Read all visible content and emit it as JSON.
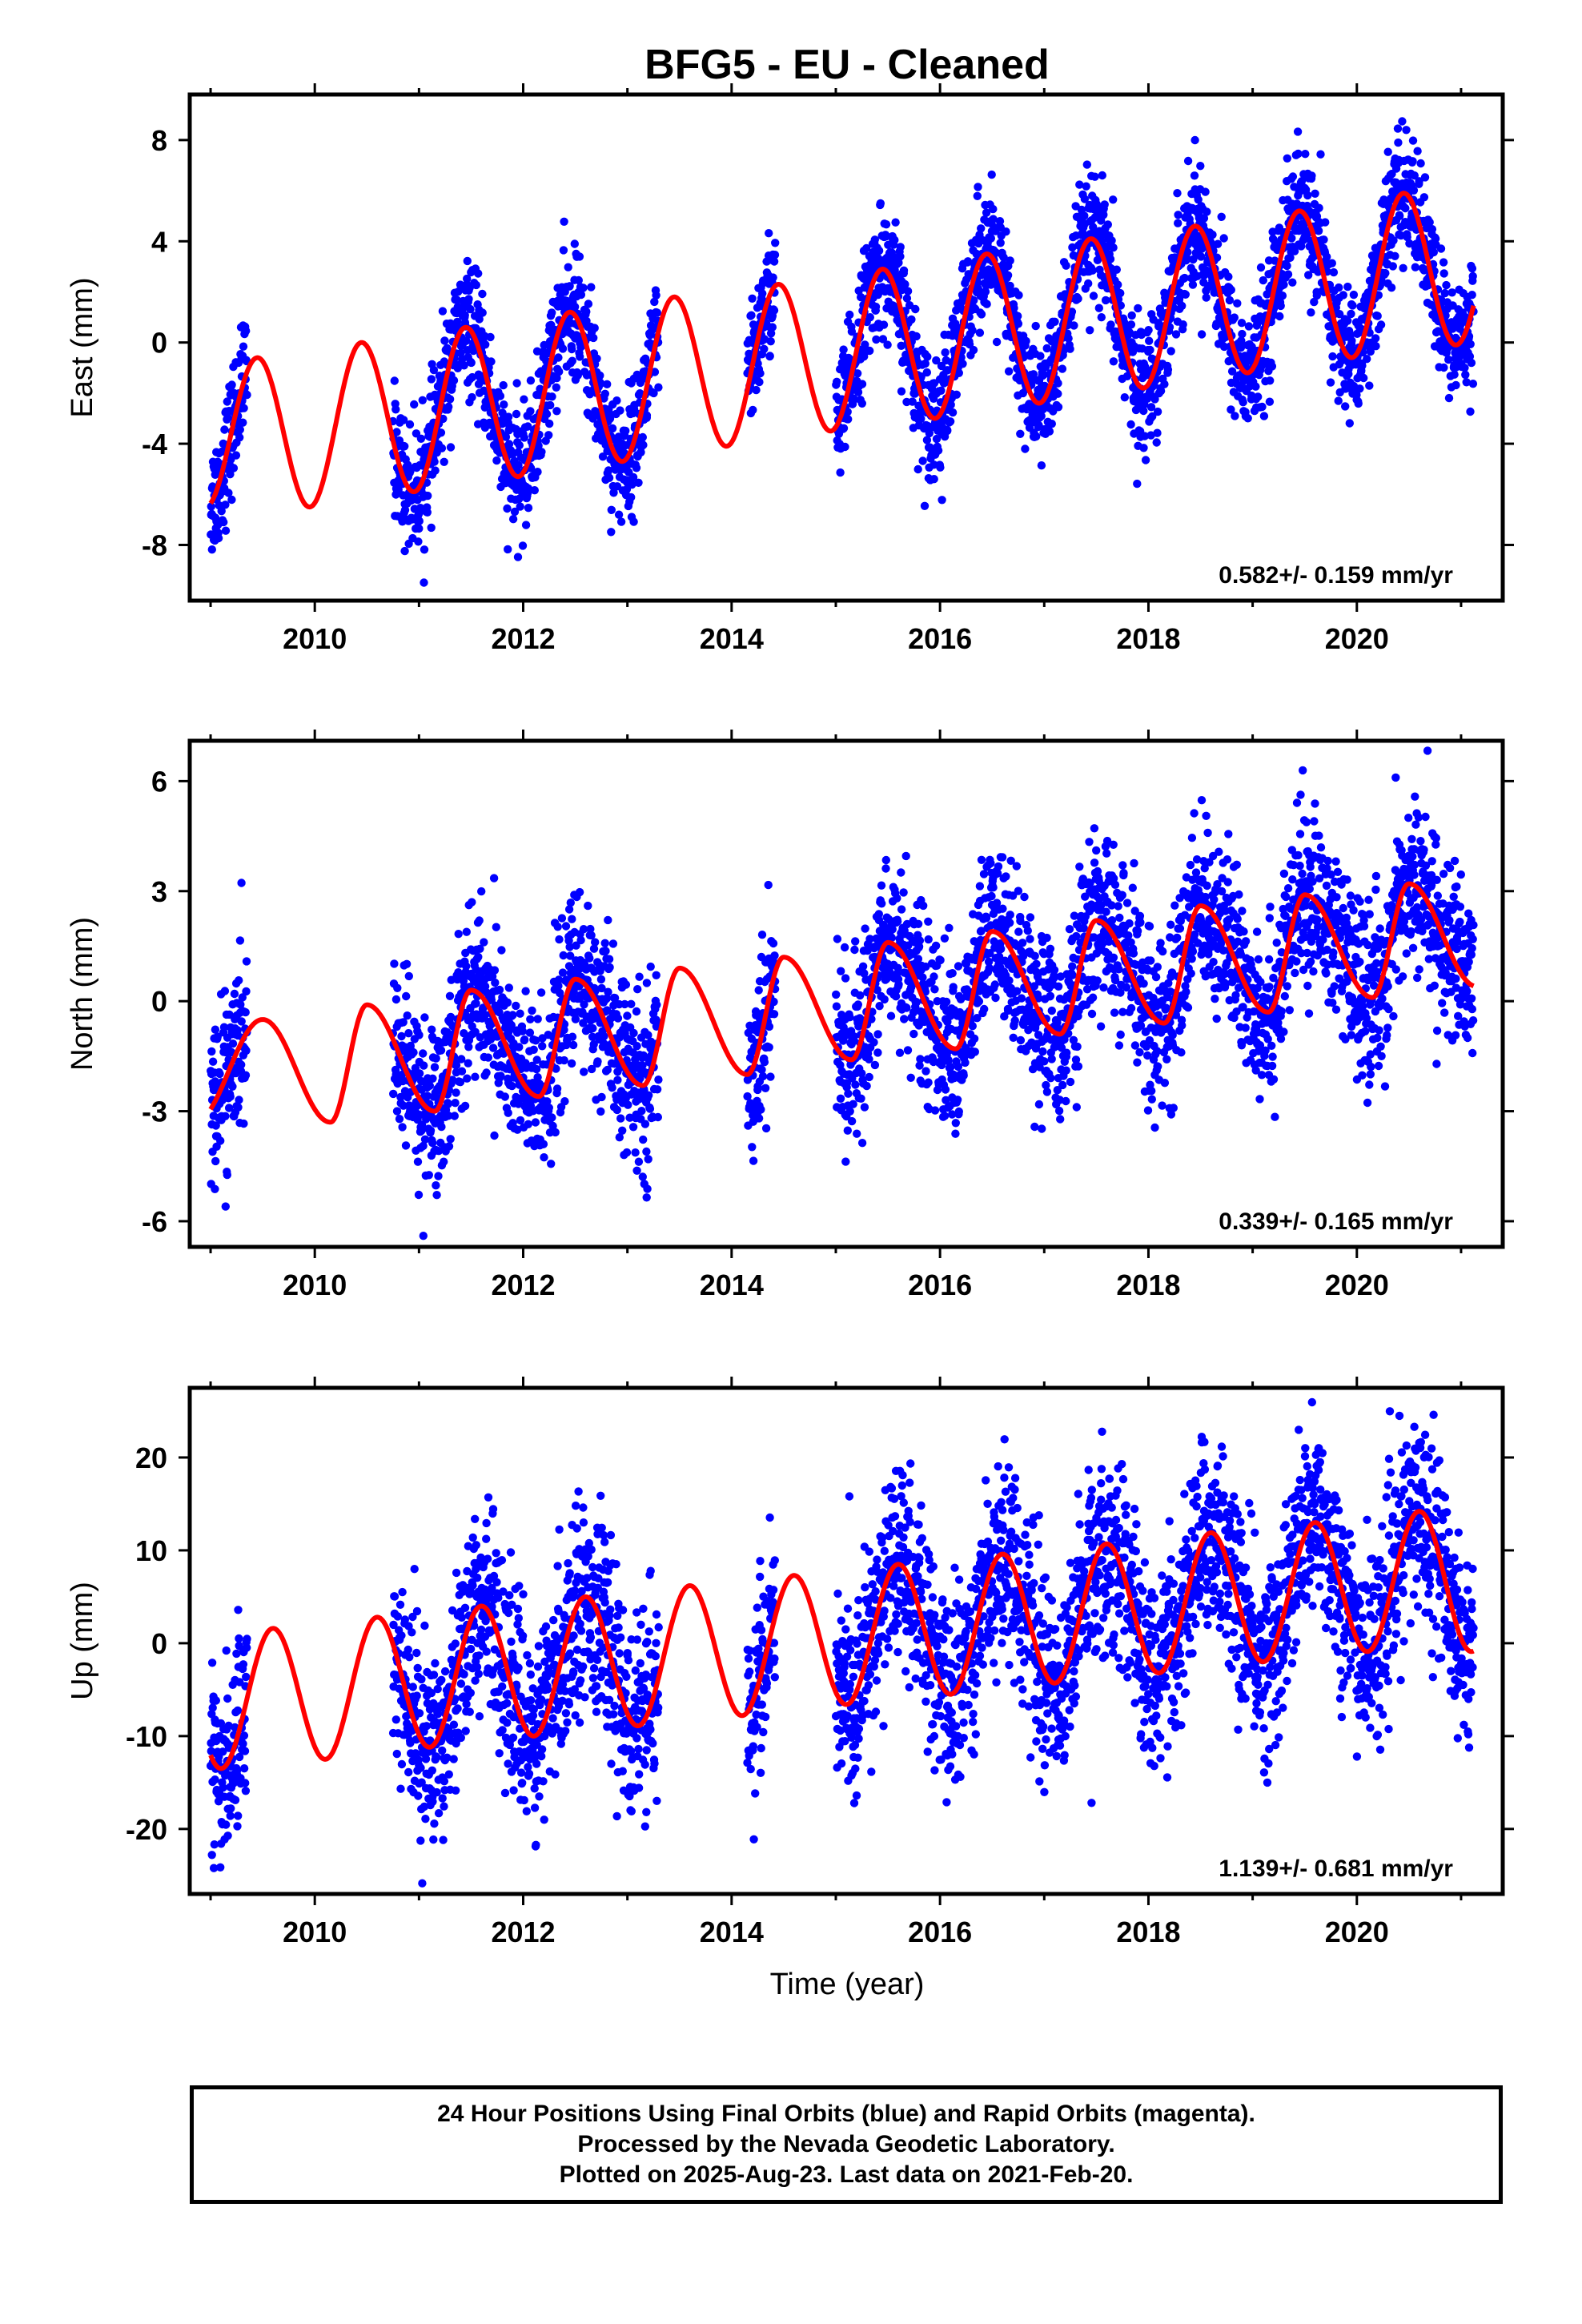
{
  "title": "BFG5  - EU - Cleaned",
  "colors": {
    "points": "#0000ff",
    "model": "#ff0000",
    "axes": "#000000"
  },
  "xlabel": "Time (year)",
  "footer": {
    "line1": "24 Hour Positions Using Final Orbits (blue) and Rapid Orbits (magenta).",
    "line2": "Processed by the Nevada Geodetic Laboratory.",
    "line3": "Plotted on 2025-Aug-23. Last data on 2021-Feb-20."
  },
  "chart_data": [
    {
      "type": "scatter",
      "name": "east",
      "ylabel": "East (mm)",
      "rate_text": "0.582+/- 0.159 mm/yr",
      "xlim": [
        2008.8,
        2021.4
      ],
      "ylim": [
        -10.2,
        9.8
      ],
      "xticks": [
        2010,
        2012,
        2014,
        2016,
        2018,
        2020
      ],
      "xtick_labels": [
        "2010",
        "2012",
        "2014",
        "2016",
        "2018",
        "2020"
      ],
      "yticks": [
        -8,
        -4,
        0,
        4,
        8
      ],
      "ytick_labels": [
        "-8",
        "-4",
        "0",
        "4",
        "8"
      ],
      "model": {
        "start": 2009.0,
        "end": 2021.12,
        "rate": 0.582,
        "offset": -3.0,
        "amplitude": 3.0,
        "peak_x": [
          2009.45,
          2010.45,
          2011.45,
          2012.45,
          2013.45,
          2014.45,
          2015.45,
          2016.45,
          2017.45,
          2018.45,
          2019.45,
          2020.45
        ],
        "peak_y": [
          -0.6,
          0.0,
          0.6,
          1.2,
          1.8,
          2.3,
          2.9,
          3.5,
          4.1,
          4.6,
          5.2,
          5.9
        ],
        "trough_x": [
          2009.95,
          2010.95,
          2011.95,
          2012.95,
          2013.95,
          2014.95,
          2015.95,
          2016.95,
          2017.95,
          2018.95,
          2019.95,
          2020.95
        ],
        "trough_y": [
          -6.5,
          -5.9,
          -5.3,
          -4.7,
          -4.1,
          -3.5,
          -3.0,
          -2.4,
          -1.8,
          -1.2,
          -0.6,
          -0.1
        ]
      },
      "data_segments": [
        [
          2009.0,
          2009.35
        ],
        [
          2010.75,
          2013.3
        ],
        [
          2014.15,
          2014.42
        ],
        [
          2015.0,
          2021.12
        ]
      ],
      "scatter_sd": 1.2,
      "n_points_per_year": 360
    },
    {
      "type": "scatter",
      "name": "north",
      "ylabel": "North (mm)",
      "rate_text": "0.339+/- 0.165 mm/yr",
      "xlim": [
        2008.8,
        2021.4
      ],
      "ylim": [
        -6.7,
        7.1
      ],
      "xticks": [
        2010,
        2012,
        2014,
        2016,
        2018,
        2020
      ],
      "xtick_labels": [
        "2010",
        "2012",
        "2014",
        "2016",
        "2018",
        "2020"
      ],
      "yticks": [
        -6,
        -3,
        0,
        3,
        6
      ],
      "ytick_labels": [
        "-6",
        "-3",
        "0",
        "3",
        "6"
      ],
      "model": {
        "start": 2009.0,
        "end": 2021.12,
        "rate": 0.339,
        "offset": -1.4,
        "amplitude": 1.2,
        "peak_x": [
          2009.5,
          2010.5,
          2011.5,
          2012.5,
          2013.5,
          2014.5,
          2015.5,
          2016.5,
          2017.5,
          2018.5,
          2019.5,
          2020.5
        ],
        "peak_y": [
          -0.5,
          -0.1,
          0.3,
          0.6,
          0.9,
          1.2,
          1.6,
          1.9,
          2.2,
          2.6,
          2.9,
          3.2
        ],
        "trough_x": [
          2010.15,
          2011.15,
          2012.15,
          2013.15,
          2014.15,
          2015.15,
          2016.15,
          2017.15,
          2018.15,
          2019.15,
          2020.15,
          2021.15
        ],
        "trough_y": [
          -3.3,
          -3.0,
          -2.6,
          -2.3,
          -2.0,
          -1.6,
          -1.3,
          -0.9,
          -0.6,
          -0.3,
          0.1,
          0.4
        ]
      },
      "data_segments": [
        [
          2009.0,
          2009.35
        ],
        [
          2010.75,
          2013.3
        ],
        [
          2014.15,
          2014.42
        ],
        [
          2015.0,
          2021.12
        ]
      ],
      "scatter_sd": 1.15,
      "n_points_per_year": 360
    },
    {
      "type": "scatter",
      "name": "up",
      "ylabel": "Up (mm)",
      "rate_text": "1.139+/- 0.681 mm/yr",
      "xlim": [
        2008.8,
        2021.4
      ],
      "ylim": [
        -27,
        27.5
      ],
      "xticks": [
        2010,
        2012,
        2014,
        2016,
        2018,
        2020
      ],
      "xtick_labels": [
        "2010",
        "2012",
        "2014",
        "2016",
        "2018",
        "2020"
      ],
      "yticks": [
        -20,
        -10,
        0,
        10,
        20
      ],
      "ytick_labels": [
        "-20",
        "-10",
        "0",
        "10",
        "20"
      ],
      "model": {
        "start": 2009.0,
        "end": 2021.12,
        "rate": 1.139,
        "offset": -5.0,
        "amplitude": 7.5,
        "peak_x": [
          2009.6,
          2010.6,
          2011.6,
          2012.6,
          2013.6,
          2014.6,
          2015.6,
          2016.6,
          2017.6,
          2018.6,
          2019.6,
          2020.6
        ],
        "peak_y": [
          1.6,
          2.8,
          4.0,
          5.0,
          6.2,
          7.3,
          8.5,
          9.6,
          10.7,
          11.9,
          13.0,
          14.2
        ],
        "trough_x": [
          2009.1,
          2010.1,
          2011.1,
          2012.1,
          2013.1,
          2014.1,
          2015.1,
          2016.1,
          2017.1,
          2018.1,
          2019.1,
          2020.1
        ],
        "trough_y": [
          -13.5,
          -12.5,
          -11.2,
          -10.0,
          -8.9,
          -7.8,
          -6.6,
          -5.5,
          -4.3,
          -3.2,
          -2.0,
          -0.9
        ]
      },
      "data_segments": [
        [
          2009.0,
          2009.35
        ],
        [
          2010.75,
          2013.3
        ],
        [
          2014.15,
          2014.42
        ],
        [
          2015.0,
          2021.12
        ]
      ],
      "scatter_sd": 5.2,
      "n_points_per_year": 360
    }
  ]
}
